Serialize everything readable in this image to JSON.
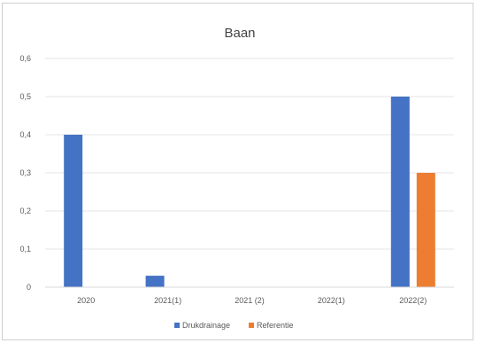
{
  "chart_data": {
    "type": "bar",
    "title": "Baan",
    "xlabel": "",
    "ylabel": "",
    "categories": [
      "2020",
      "2021(1)",
      "2021 (2)",
      "2022(1)",
      "2022(2)"
    ],
    "series": [
      {
        "name": "Drukdrainage",
        "color": "#4472C4",
        "values": [
          0.4,
          0.03,
          0,
          0,
          0.5
        ]
      },
      {
        "name": "Referentie",
        "color": "#ED7D31",
        "values": [
          null,
          null,
          null,
          null,
          0.3
        ]
      }
    ],
    "ylim": [
      0,
      0.6
    ],
    "yticks": [
      "0",
      "0,1",
      "0,2",
      "0,3",
      "0,4",
      "0,5",
      "0,6"
    ],
    "grid": true,
    "legend": "bottom"
  }
}
